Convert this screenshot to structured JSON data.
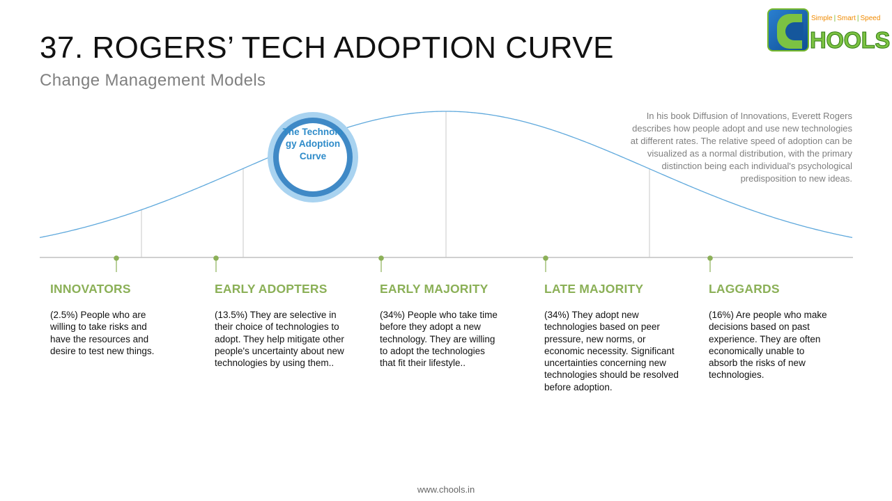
{
  "header": {
    "title": "37. ROGERS’ TECH ADOPTION CURVE",
    "subtitle": "Change Management Models"
  },
  "logo": {
    "tag_simple": "Simple",
    "tag_smart": "Smart",
    "tag_speed": "Speed",
    "tag_separator": "|",
    "wordmark": "HOOLS"
  },
  "description": "In his book Diffusion of Innovations, Everett Rogers describes how people adopt and use new technologies at different rates. The relative speed of adoption can be visualized as a normal distribution, with the primary distinction being each individual's psychological predisposition to new ideas.",
  "badge": {
    "label": "The Technology Adoption Curve"
  },
  "stages": [
    {
      "title": "INNOVATORS",
      "text": "(2.5%) People who are willing to take risks and have the resources and desire to test new things."
    },
    {
      "title": "EARLY ADOPTERS",
      "text": "(13.5%) They are selective in their choice of technologies to adopt. They help mitigate other people's uncertainty about new technologies by using them.."
    },
    {
      "title": "EARLY MAJORITY",
      "text": "(34%) People who take time before they adopt a new technology. They are willing to adopt the technologies that fit their lifestyle.."
    },
    {
      "title": "LATE MAJORITY",
      "text": "(34%) They adopt new technologies based on peer pressure, new norms, or economic necessity. Significant uncertainties concerning new technologies should be resolved before adoption."
    },
    {
      "title": "LAGGARDS",
      "text": "(16%) Are people who make decisions based on past experience. They are often economically unable to absorb the risks of new technologies."
    }
  ],
  "footer": {
    "url": "www.chools.in"
  },
  "colors": {
    "curve": "#5ea8dc",
    "divider": "#c8c8c8",
    "baseline": "#c0c0c0",
    "marker": "#8bb057"
  }
}
